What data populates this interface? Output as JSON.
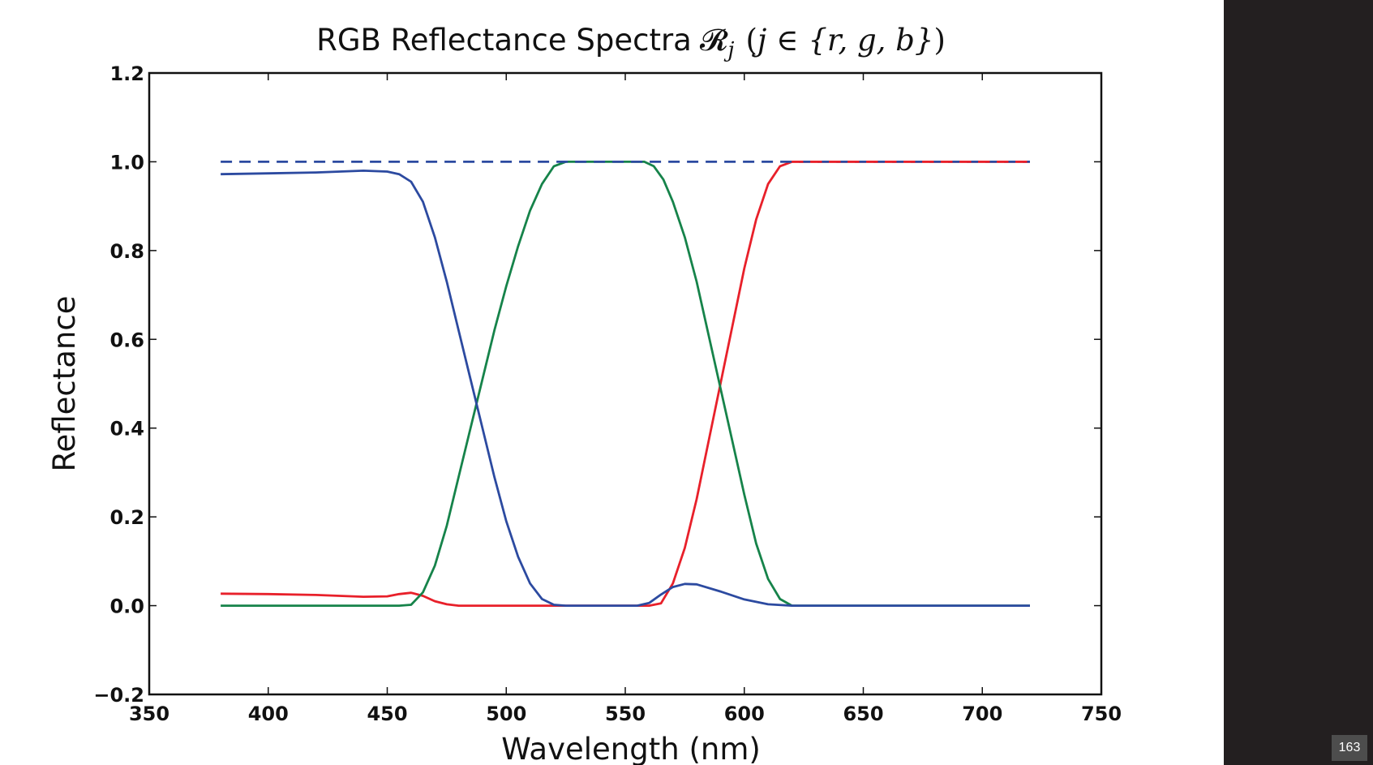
{
  "page": {
    "number": "163"
  },
  "colors": {
    "red": "#e8202a",
    "green": "#16834a",
    "blue": "#2c4aa0",
    "sidebar": "#231f20"
  },
  "chart_data": {
    "type": "line",
    "title": "RGB Reflectance Spectra",
    "title_math": {
      "symbol": "𝓡",
      "subscript": "j",
      "paren_open": "(",
      "var": "j",
      "elem_of": " ∈ ",
      "set": "{r, g, b}",
      "paren_close": ")"
    },
    "xlabel": "Wavelength (nm)",
    "ylabel": "Reflectance",
    "xlim": [
      350,
      750
    ],
    "ylim": [
      -0.2,
      1.2
    ],
    "xticks": [
      350,
      400,
      450,
      500,
      550,
      600,
      650,
      700,
      750
    ],
    "xtick_labels": [
      "350",
      "400",
      "450",
      "500",
      "550",
      "600",
      "650",
      "700",
      "750"
    ],
    "yticks": [
      -0.2,
      0.0,
      0.2,
      0.4,
      0.6,
      0.8,
      1.0,
      1.2
    ],
    "ytick_labels": [
      "−0.2",
      "0.0",
      "0.2",
      "0.4",
      "0.6",
      "0.8",
      "1.0",
      "1.2"
    ],
    "grid": false,
    "series": [
      {
        "color": "red",
        "style": "solid",
        "x": [
          380,
          400,
          420,
          440,
          450,
          455,
          460,
          465,
          470,
          475,
          480,
          500,
          520,
          540,
          560,
          565,
          570,
          575,
          580,
          585,
          590,
          595,
          600,
          605,
          610,
          615,
          620,
          640,
          660,
          680,
          700,
          720
        ],
        "y": [
          0.027,
          0.026,
          0.024,
          0.02,
          0.021,
          0.026,
          0.029,
          0.022,
          0.01,
          0.003,
          0.0,
          0.0,
          0.0,
          0.0,
          0.0,
          0.005,
          0.05,
          0.13,
          0.24,
          0.37,
          0.5,
          0.63,
          0.76,
          0.87,
          0.95,
          0.99,
          1.0,
          1.0,
          1.0,
          1.0,
          1.0,
          1.0
        ]
      },
      {
        "color": "green",
        "style": "solid",
        "x": [
          380,
          400,
          420,
          440,
          455,
          460,
          465,
          470,
          475,
          480,
          485,
          490,
          495,
          500,
          505,
          510,
          515,
          520,
          525,
          530,
          540,
          550,
          558,
          562,
          566,
          570,
          575,
          580,
          585,
          590,
          595,
          600,
          605,
          610,
          615,
          620,
          622,
          640,
          660,
          680,
          700,
          720
        ],
        "y": [
          0.0,
          0.0,
          0.0,
          0.0,
          0.0,
          0.002,
          0.03,
          0.09,
          0.18,
          0.29,
          0.4,
          0.51,
          0.62,
          0.72,
          0.81,
          0.89,
          0.95,
          0.99,
          1.0,
          1.0,
          1.0,
          1.0,
          1.0,
          0.99,
          0.96,
          0.91,
          0.83,
          0.73,
          0.61,
          0.49,
          0.37,
          0.25,
          0.14,
          0.06,
          0.015,
          0.0,
          0.0,
          0.0,
          0.0,
          0.0,
          0.0,
          0.0
        ]
      },
      {
        "color": "blue",
        "style": "solid",
        "x": [
          380,
          400,
          420,
          440,
          450,
          455,
          460,
          465,
          470,
          475,
          480,
          485,
          490,
          495,
          500,
          505,
          510,
          515,
          520,
          525,
          530,
          540,
          550,
          555,
          560,
          565,
          570,
          575,
          580,
          590,
          600,
          610,
          620,
          640,
          660,
          680,
          700,
          720
        ],
        "y": [
          0.972,
          0.974,
          0.976,
          0.98,
          0.978,
          0.972,
          0.955,
          0.91,
          0.83,
          0.73,
          0.62,
          0.51,
          0.4,
          0.29,
          0.19,
          0.11,
          0.05,
          0.015,
          0.002,
          0.0,
          0.0,
          0.0,
          0.0,
          0.0,
          0.006,
          0.025,
          0.042,
          0.049,
          0.048,
          0.032,
          0.014,
          0.003,
          0.0,
          0.0,
          0.0,
          0.0,
          0.0,
          0.0
        ]
      },
      {
        "color": "blue",
        "style": "dashed",
        "x": [
          380,
          720
        ],
        "y": [
          1.0,
          1.0
        ]
      },
      {
        "color": "red",
        "style": "dashed",
        "x": [
          620,
          720
        ],
        "y": [
          1.0,
          1.0
        ]
      }
    ]
  }
}
